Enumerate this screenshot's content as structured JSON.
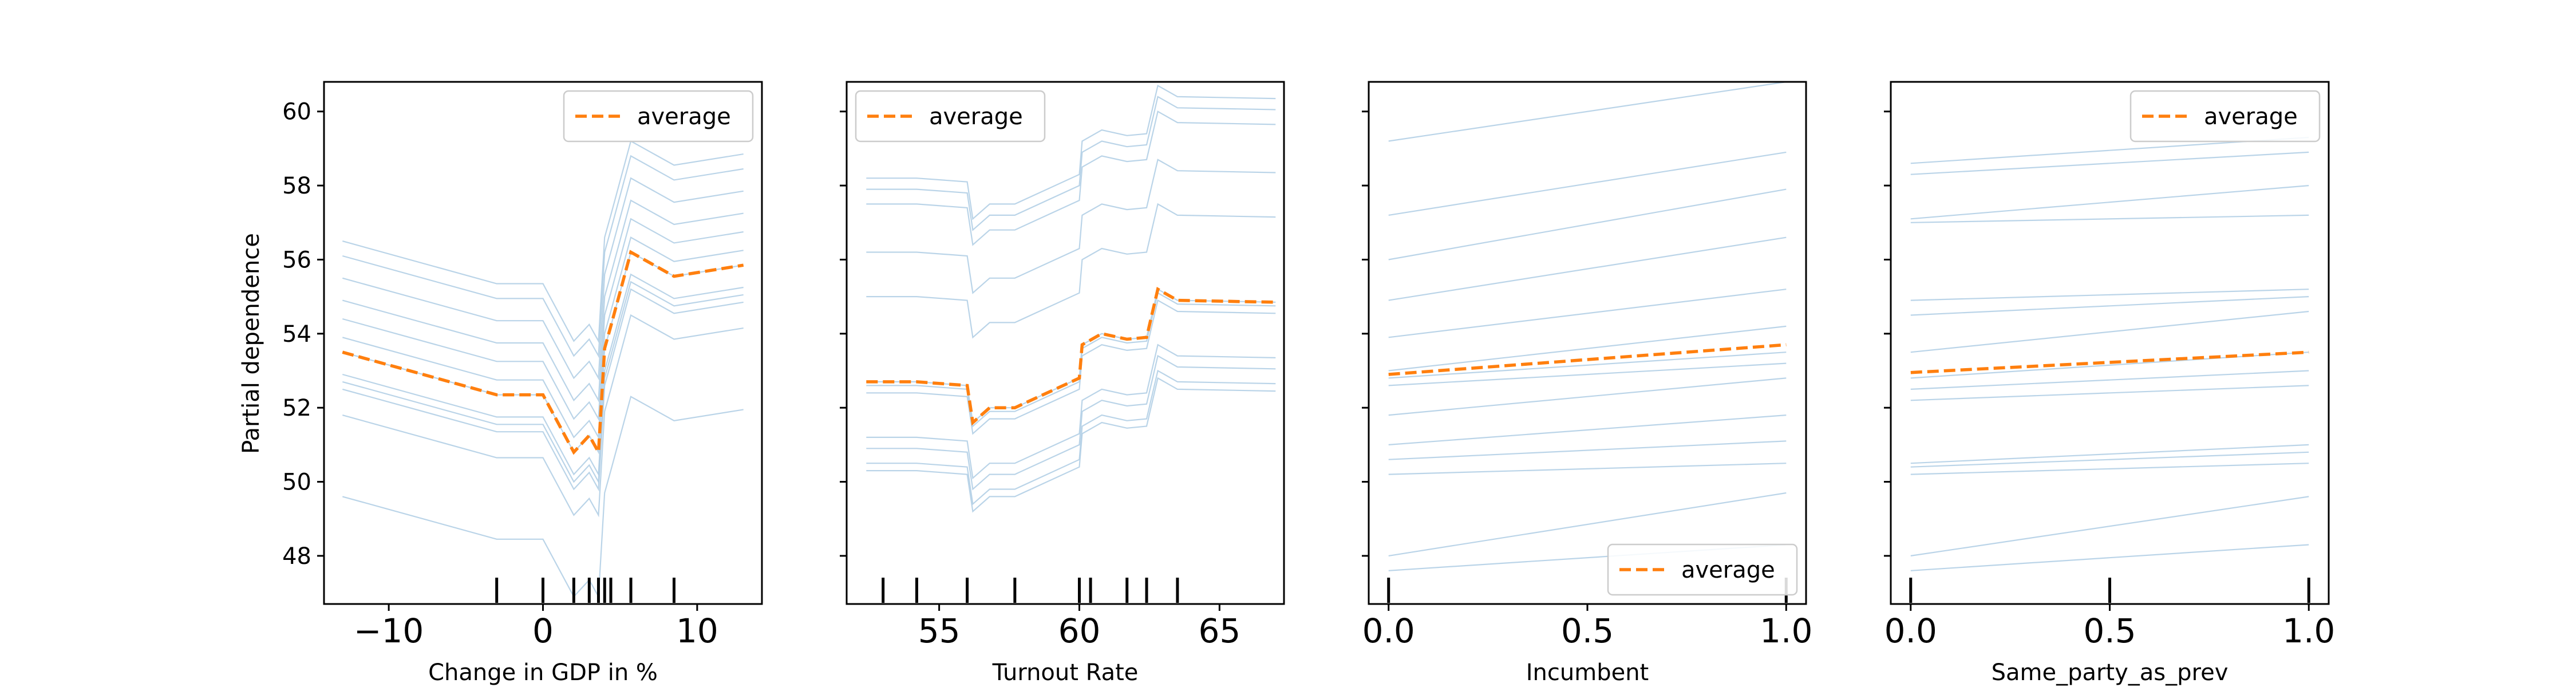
{
  "figure": {
    "ylabel": "Partial dependence",
    "ice_color": "#b3cfe6",
    "average_color": "#ff7f0e",
    "axes_color": "#000000"
  },
  "chart_data": [
    {
      "type": "line",
      "xlabel": "Change in GDP in %",
      "ylabel": "Partial dependence",
      "xlim": [
        -14.2,
        14.2
      ],
      "ylim": [
        46.7,
        60.8
      ],
      "xticks": [
        {
          "value": -10,
          "label": "−10"
        },
        {
          "value": 0,
          "label": "0"
        },
        {
          "value": 10,
          "label": "10"
        }
      ],
      "yticks": [
        {
          "value": 48,
          "label": "48"
        },
        {
          "value": 50,
          "label": "50"
        },
        {
          "value": 52,
          "label": "52"
        },
        {
          "value": 54,
          "label": "54"
        },
        {
          "value": 56,
          "label": "56"
        },
        {
          "value": 58,
          "label": "58"
        },
        {
          "value": 60,
          "label": "60"
        }
      ],
      "show_ytick_labels": true,
      "legend": {
        "entry": "average",
        "placement": "top-right"
      },
      "x": [
        -13,
        -3,
        0,
        2,
        3,
        3.6,
        4,
        4.4,
        5.7,
        8.5,
        13
      ],
      "average": [
        53.5,
        52.35,
        52.35,
        50.8,
        51.25,
        50.8,
        53.6,
        54.2,
        56.2,
        55.55,
        55.85
      ],
      "ice_offsets": [
        -3.9,
        -1.7,
        -1.0,
        -0.8,
        -0.6,
        0.0,
        0.4,
        0.9,
        1.4,
        2.0,
        2.6,
        3.0
      ],
      "rug": [
        -3,
        0,
        2,
        3,
        3.6,
        4,
        4.4,
        5.7,
        8.5
      ]
    },
    {
      "type": "line",
      "xlabel": "Turnout Rate",
      "ylabel": "",
      "xlim": [
        51.7,
        67.3
      ],
      "ylim": [
        46.7,
        60.8
      ],
      "xticks": [
        {
          "value": 55,
          "label": "55"
        },
        {
          "value": 60,
          "label": "60"
        },
        {
          "value": 65,
          "label": "65"
        }
      ],
      "yticks": [
        {
          "value": 48,
          "label": ""
        },
        {
          "value": 50,
          "label": ""
        },
        {
          "value": 52,
          "label": ""
        },
        {
          "value": 54,
          "label": ""
        },
        {
          "value": 56,
          "label": ""
        },
        {
          "value": 58,
          "label": ""
        },
        {
          "value": 60,
          "label": ""
        }
      ],
      "show_ytick_labels": false,
      "legend": {
        "entry": "average",
        "placement": "top-left"
      },
      "x": [
        52.4,
        53,
        54.2,
        56,
        56.2,
        56.8,
        57.7,
        60,
        60.1,
        60.8,
        61.7,
        62.4,
        62.8,
        63.5,
        67
      ],
      "average": [
        52.7,
        52.7,
        52.7,
        52.6,
        51.6,
        52.0,
        52.0,
        52.8,
        53.7,
        54.0,
        53.85,
        53.9,
        55.2,
        54.9,
        54.85
      ],
      "ice_offsets": [
        -2.4,
        -2.2,
        -1.8,
        -1.5,
        -0.3,
        -0.1,
        0.0,
        2.3,
        3.5,
        4.8,
        5.2,
        5.5
      ],
      "rug": [
        53,
        54.2,
        56,
        57.7,
        60,
        60.4,
        61.7,
        62.4,
        63.5
      ]
    },
    {
      "type": "line",
      "xlabel": "Incumbent",
      "ylabel": "",
      "xlim": [
        -0.05,
        1.05
      ],
      "ylim": [
        46.7,
        60.8
      ],
      "xticks": [
        {
          "value": 0.0,
          "label": "0.0"
        },
        {
          "value": 0.5,
          "label": "0.5"
        },
        {
          "value": 1.0,
          "label": "1.0"
        }
      ],
      "yticks": [
        {
          "value": 48,
          "label": ""
        },
        {
          "value": 50,
          "label": ""
        },
        {
          "value": 52,
          "label": ""
        },
        {
          "value": 54,
          "label": ""
        },
        {
          "value": 56,
          "label": ""
        },
        {
          "value": 58,
          "label": ""
        },
        {
          "value": 60,
          "label": ""
        }
      ],
      "show_ytick_labels": false,
      "legend": {
        "entry": "average",
        "placement": "bottom-right"
      },
      "x": [
        0,
        1
      ],
      "average": [
        52.9,
        53.7
      ],
      "ice_lines": [
        [
          47.6,
          48.3
        ],
        [
          48.0,
          49.7
        ],
        [
          50.2,
          50.5
        ],
        [
          50.6,
          51.1
        ],
        [
          51.0,
          51.8
        ],
        [
          51.8,
          52.8
        ],
        [
          52.6,
          53.2
        ],
        [
          52.8,
          53.5
        ],
        [
          53.0,
          54.2
        ],
        [
          53.9,
          55.2
        ],
        [
          54.9,
          56.6
        ],
        [
          56.0,
          57.9
        ],
        [
          57.2,
          58.9
        ],
        [
          59.2,
          60.8
        ]
      ],
      "rug": [
        0,
        1
      ]
    },
    {
      "type": "line",
      "xlabel": "Same_party_as_prev",
      "ylabel": "",
      "xlim": [
        -0.05,
        1.05
      ],
      "ylim": [
        46.7,
        60.8
      ],
      "xticks": [
        {
          "value": 0.0,
          "label": "0.0"
        },
        {
          "value": 0.5,
          "label": "0.5"
        },
        {
          "value": 1.0,
          "label": "1.0"
        }
      ],
      "yticks": [
        {
          "value": 48,
          "label": ""
        },
        {
          "value": 50,
          "label": ""
        },
        {
          "value": 52,
          "label": ""
        },
        {
          "value": 54,
          "label": ""
        },
        {
          "value": 56,
          "label": ""
        },
        {
          "value": 58,
          "label": ""
        },
        {
          "value": 60,
          "label": ""
        }
      ],
      "show_ytick_labels": false,
      "legend": {
        "entry": "average",
        "placement": "top-right"
      },
      "x": [
        0,
        1
      ],
      "average": [
        52.95,
        53.5
      ],
      "ice_lines": [
        [
          47.6,
          48.3
        ],
        [
          48.0,
          49.6
        ],
        [
          50.2,
          50.5
        ],
        [
          50.4,
          50.8
        ],
        [
          50.5,
          51.0
        ],
        [
          52.2,
          52.6
        ],
        [
          52.5,
          53.0
        ],
        [
          52.8,
          53.5
        ],
        [
          53.5,
          54.6
        ],
        [
          54.5,
          55.0
        ],
        [
          54.9,
          55.2
        ],
        [
          57.0,
          57.2
        ],
        [
          57.1,
          58.0
        ],
        [
          58.3,
          58.9
        ],
        [
          58.6,
          59.3
        ]
      ],
      "rug": [
        0,
        0.5,
        1
      ]
    }
  ]
}
